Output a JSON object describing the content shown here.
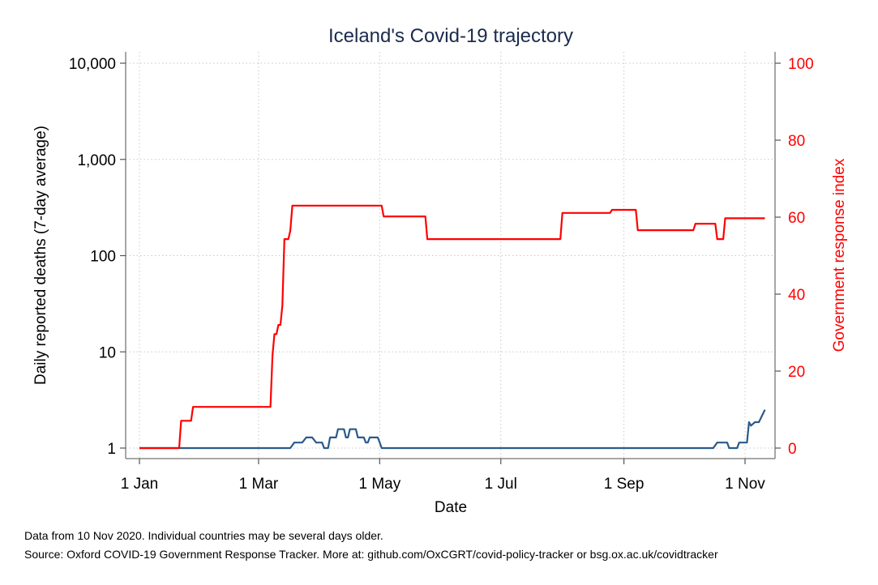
{
  "chart_data": {
    "type": "line",
    "title": "Iceland's Covid-19 trajectory",
    "xlabel": "Date",
    "ylabel_left": "Daily reported deaths (7-day average)",
    "ylabel_right": "Government response index",
    "x_axis": {
      "unit": "day of year 2020",
      "range": [
        1,
        316
      ],
      "ticks": [
        {
          "day": 1,
          "label": "1 Jan"
        },
        {
          "day": 61,
          "label": "1 Mar"
        },
        {
          "day": 122,
          "label": "1 May"
        },
        {
          "day": 183,
          "label": "1 Jul"
        },
        {
          "day": 245,
          "label": "1 Sep"
        },
        {
          "day": 306,
          "label": "1 Nov"
        }
      ]
    },
    "y_left": {
      "scale": "log",
      "range": [
        1,
        10000
      ],
      "ticks": [
        {
          "value": 1,
          "label": "1"
        },
        {
          "value": 10,
          "label": "10"
        },
        {
          "value": 100,
          "label": "100"
        },
        {
          "value": 1000,
          "label": "1,000"
        },
        {
          "value": 10000,
          "label": "10,000"
        }
      ]
    },
    "y_right": {
      "scale": "linear",
      "range": [
        0,
        100
      ],
      "ticks": [
        {
          "value": 0,
          "label": "0"
        },
        {
          "value": 20,
          "label": "20"
        },
        {
          "value": 40,
          "label": "40"
        },
        {
          "value": 60,
          "label": "60"
        },
        {
          "value": 80,
          "label": "80"
        },
        {
          "value": 100,
          "label": "100"
        }
      ]
    },
    "grid": true,
    "series": [
      {
        "name": "Daily reported deaths (7-day average)",
        "axis": "left",
        "color": "#2a5a8a",
        "points": [
          [
            1,
            1
          ],
          [
            77,
            1
          ],
          [
            79,
            1.14
          ],
          [
            83,
            1.14
          ],
          [
            85,
            1.29
          ],
          [
            88,
            1.29
          ],
          [
            90,
            1.14
          ],
          [
            93,
            1.14
          ],
          [
            94,
            1
          ],
          [
            96,
            1
          ],
          [
            97,
            1.29
          ],
          [
            100,
            1.29
          ],
          [
            101,
            1.57
          ],
          [
            104,
            1.57
          ],
          [
            105,
            1.29
          ],
          [
            106,
            1.29
          ],
          [
            107,
            1.57
          ],
          [
            110,
            1.57
          ],
          [
            111,
            1.29
          ],
          [
            114,
            1.29
          ],
          [
            115,
            1.14
          ],
          [
            116,
            1.14
          ],
          [
            117,
            1.29
          ],
          [
            121,
            1.29
          ],
          [
            122,
            1.14
          ],
          [
            123,
            1
          ],
          [
            290,
            1
          ],
          [
            292,
            1.14
          ],
          [
            297,
            1.14
          ],
          [
            298,
            1
          ],
          [
            302,
            1
          ],
          [
            303,
            1.14
          ],
          [
            307,
            1.14
          ],
          [
            308,
            1.86
          ],
          [
            309,
            1.71
          ],
          [
            311,
            1.86
          ],
          [
            313,
            1.86
          ],
          [
            316,
            2.5
          ]
        ]
      },
      {
        "name": "Government response index",
        "axis": "right",
        "color": "#ff0000",
        "points": [
          [
            1,
            0
          ],
          [
            21,
            0
          ],
          [
            22,
            7.1
          ],
          [
            27,
            7.1
          ],
          [
            28,
            10.7
          ],
          [
            67,
            10.7
          ],
          [
            68,
            24
          ],
          [
            69,
            29.6
          ],
          [
            70,
            29.6
          ],
          [
            71,
            32
          ],
          [
            72,
            32
          ],
          [
            73,
            37
          ],
          [
            74,
            54.3
          ],
          [
            76,
            54.3
          ],
          [
            77,
            56.5
          ],
          [
            78,
            63
          ],
          [
            123,
            63
          ],
          [
            124,
            60.2
          ],
          [
            145,
            60.2
          ],
          [
            146,
            54.3
          ],
          [
            213,
            54.3
          ],
          [
            214,
            61.1
          ],
          [
            238,
            61.1
          ],
          [
            239,
            61.9
          ],
          [
            251,
            61.9
          ],
          [
            252,
            56.6
          ],
          [
            280,
            56.6
          ],
          [
            281,
            58.3
          ],
          [
            291,
            58.3
          ],
          [
            292,
            54.3
          ],
          [
            295,
            54.3
          ],
          [
            296,
            59.7
          ],
          [
            316,
            59.7
          ]
        ]
      }
    ]
  },
  "footnotes": {
    "line1": "Data from 10 Nov 2020. Individual countries may be several days older.",
    "line2": "Source: Oxford COVID-19 Government Response Tracker. More at: github.com/OxCGRT/covid-policy-tracker or bsg.ox.ac.uk/covidtracker"
  }
}
